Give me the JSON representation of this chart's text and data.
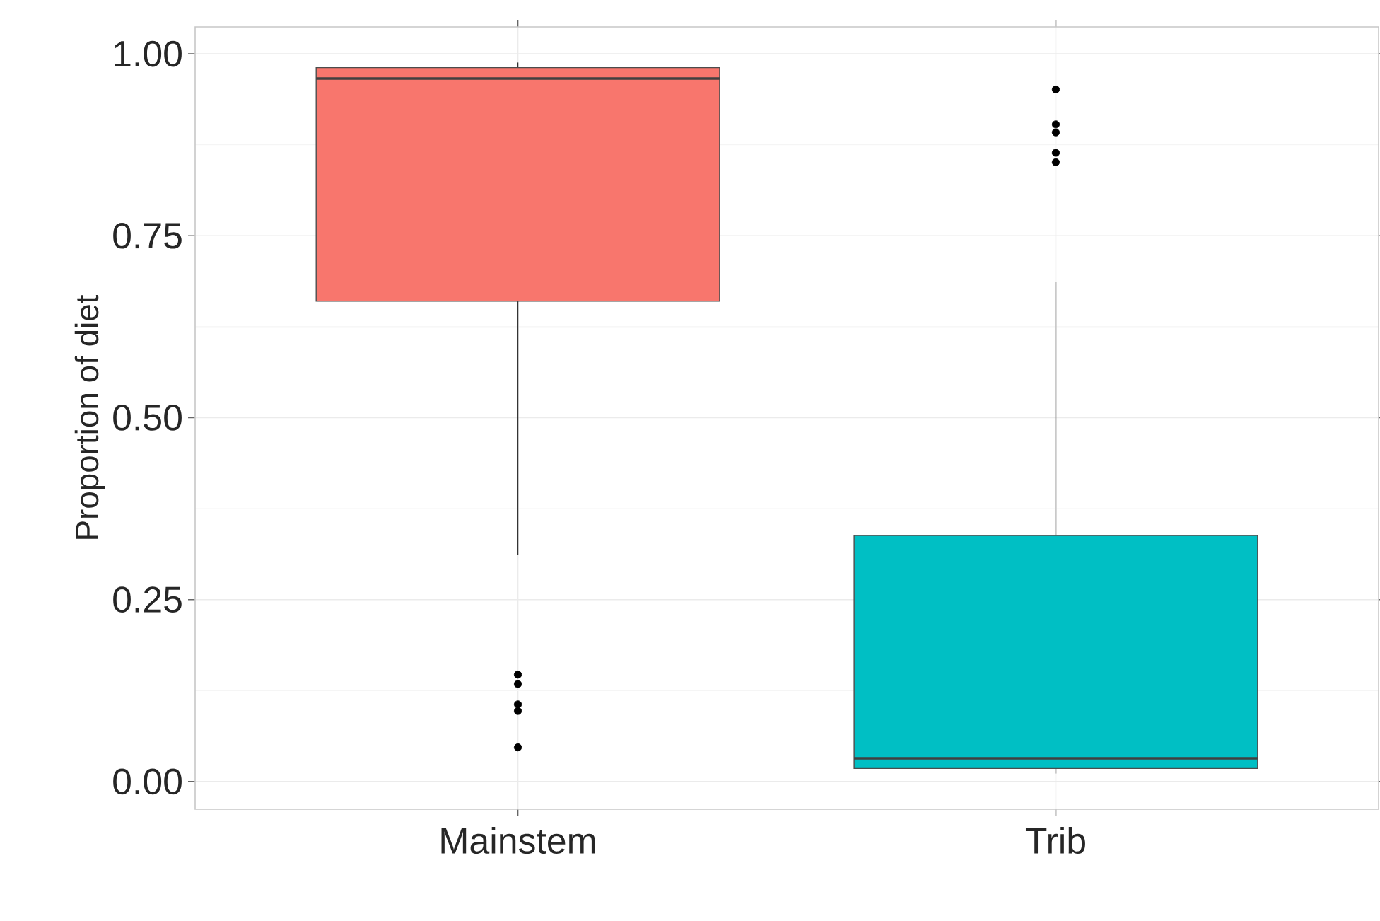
{
  "chart_data": {
    "type": "box",
    "ylabel": "Proportion of diet",
    "categories": [
      "Mainstem",
      "Trib"
    ],
    "colors": [
      "#f8766d",
      "#00bfc4"
    ],
    "boxes": [
      {
        "low": 0.311,
        "q1": 0.66,
        "median": 0.966,
        "q3": 0.981,
        "high": 0.988,
        "outliers": [
          0.147,
          0.134,
          0.106,
          0.097,
          0.047
        ]
      },
      {
        "low": 0.011,
        "q1": 0.018,
        "median": 0.032,
        "q3": 0.338,
        "high": 0.687,
        "outliers": [
          0.951,
          0.903,
          0.892,
          0.864,
          0.851
        ]
      }
    ],
    "ylim": [
      -0.038,
      1.037
    ],
    "yticks": [
      {
        "value": 0,
        "label": "0.00"
      },
      {
        "value": 0.25,
        "label": "0.25"
      },
      {
        "value": 0.5,
        "label": "0.50"
      },
      {
        "value": 0.75,
        "label": "0.75"
      },
      {
        "value": 1,
        "label": "1.00"
      }
    ],
    "grid": true
  }
}
